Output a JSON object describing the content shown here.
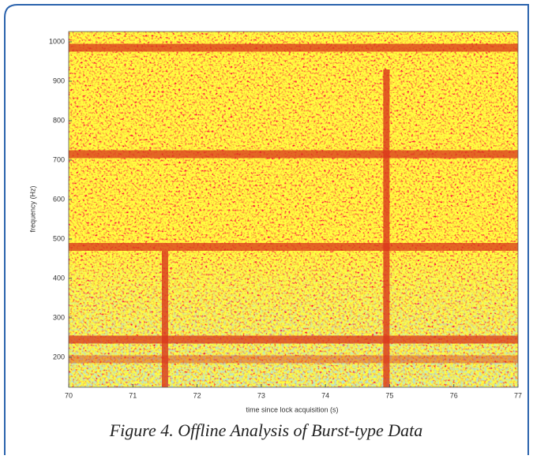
{
  "chart_data": {
    "type": "spectrogram",
    "caption": "Figure 4. Offline Analysis of Burst-type Data",
    "x_label": "time since lock acquisition (s)",
    "y_label": "frequency (Hz)",
    "xlim": [
      70,
      77
    ],
    "xticks": [
      70,
      71,
      72,
      73,
      74,
      75,
      76,
      77
    ],
    "ylim": [
      124,
      1026
    ],
    "yticks": [
      200,
      300,
      400,
      500,
      600,
      700,
      800,
      900,
      1000
    ],
    "bands_hz": [
      985,
      715,
      480,
      245,
      195
    ],
    "bursts_s": [
      71.5,
      74.95
    ],
    "burst_tops_hz": [
      470,
      930
    ],
    "color": "#d9361c"
  }
}
